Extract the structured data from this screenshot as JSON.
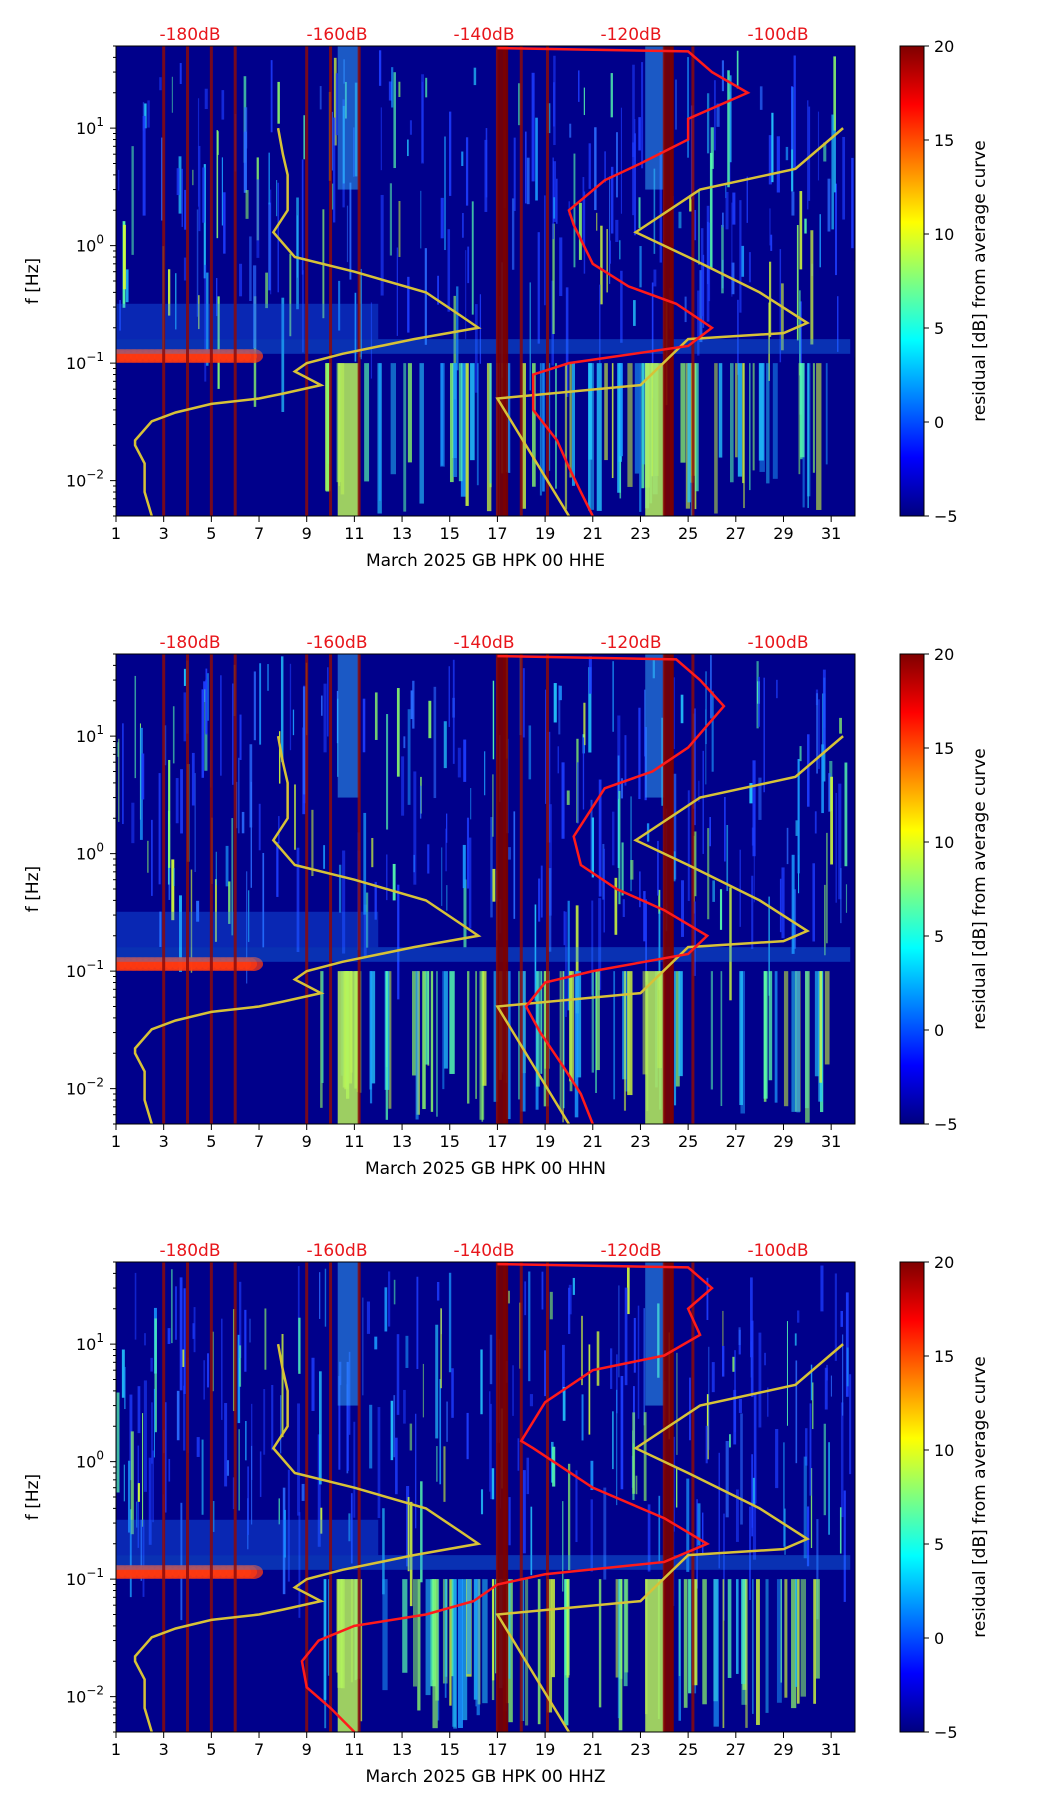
{
  "chart_data": [
    {
      "type": "heatmap",
      "title": "",
      "xlabel": "March 2025 GB HPK 00 HHE",
      "ylabel": "f [Hz]",
      "x_ticks": [
        "1",
        "3",
        "5",
        "7",
        "9",
        "11",
        "13",
        "15",
        "17",
        "19",
        "21",
        "23",
        "25",
        "27",
        "29",
        "31"
      ],
      "y_ticks": [
        {
          "exp": "-2",
          "value": 0.01
        },
        {
          "exp": "-1",
          "value": 0.1
        },
        {
          "exp": "0",
          "value": 1
        },
        {
          "exp": "1",
          "value": 10
        }
      ],
      "xlim": [
        1,
        32
      ],
      "ylim": [
        0.005,
        50
      ],
      "db_labels": [
        "-180dB",
        "-160dB",
        "-140dB",
        "-120dB",
        "-100dB"
      ],
      "db_label_color": "#e8161b",
      "colorbar": {
        "label": "residual [dB] from average curve",
        "ticks": [
          "20",
          "15",
          "10",
          "5",
          "0",
          "−5"
        ],
        "range": [
          -5,
          20
        ]
      },
      "red_gap_days": [
        3,
        4,
        5,
        6,
        9,
        10,
        11.2,
        17,
        17.3,
        18,
        19.1,
        24,
        24.3,
        25.2
      ],
      "yellow_curve": [
        [
          2.5,
          0.005
        ],
        [
          2.2,
          0.008
        ],
        [
          2.2,
          0.014
        ],
        [
          1.8,
          0.02
        ],
        [
          1.8,
          0.022
        ],
        [
          2.5,
          0.032
        ],
        [
          3.5,
          0.038
        ],
        [
          5,
          0.045
        ],
        [
          7,
          0.05
        ],
        [
          8,
          0.055
        ],
        [
          9.6,
          0.065
        ],
        [
          8.5,
          0.085
        ],
        [
          9,
          0.1
        ],
        [
          10.5,
          0.12
        ],
        [
          13.5,
          0.16
        ],
        [
          16.2,
          0.2
        ],
        [
          15.5,
          0.25
        ],
        [
          14,
          0.4
        ],
        [
          11,
          0.6
        ],
        [
          8.5,
          0.8
        ],
        [
          7.6,
          1.3
        ],
        [
          8.2,
          2
        ],
        [
          8.2,
          4
        ],
        [
          8,
          6
        ],
        [
          7.8,
          10
        ],
        [
          20,
          0.005
        ],
        [
          17,
          0.05
        ],
        [
          23,
          0.065
        ],
        [
          25,
          0.16
        ],
        [
          29,
          0.18
        ],
        [
          30,
          0.22
        ],
        [
          28,
          0.4
        ],
        [
          25,
          0.8
        ],
        [
          22.8,
          1.3
        ],
        [
          25.5,
          3
        ],
        [
          29.5,
          4.5
        ],
        [
          31.5,
          10
        ]
      ],
      "red_curve": [
        [
          21,
          0.005
        ],
        [
          20.5,
          0.008
        ],
        [
          20,
          0.013
        ],
        [
          19.5,
          0.022
        ],
        [
          18.5,
          0.04
        ],
        [
          18.5,
          0.08
        ],
        [
          20,
          0.1
        ],
        [
          25,
          0.14
        ],
        [
          26,
          0.2
        ],
        [
          24.5,
          0.32
        ],
        [
          22.5,
          0.45
        ],
        [
          21,
          0.7
        ],
        [
          20.2,
          1.5
        ],
        [
          20,
          2
        ],
        [
          21.5,
          3.6
        ],
        [
          23,
          5
        ],
        [
          25,
          8
        ],
        [
          25,
          12
        ],
        [
          27.5,
          20
        ],
        [
          26,
          30
        ],
        [
          25,
          45
        ],
        [
          17,
          48
        ]
      ]
    },
    {
      "type": "heatmap",
      "title": "",
      "xlabel": "March 2025 GB HPK 00 HHN",
      "ylabel": "f [Hz]",
      "x_ticks": [
        "1",
        "3",
        "5",
        "7",
        "9",
        "11",
        "13",
        "15",
        "17",
        "19",
        "21",
        "23",
        "25",
        "27",
        "29",
        "31"
      ],
      "y_ticks": [
        {
          "exp": "-2",
          "value": 0.01
        },
        {
          "exp": "-1",
          "value": 0.1
        },
        {
          "exp": "0",
          "value": 1
        },
        {
          "exp": "1",
          "value": 10
        }
      ],
      "xlim": [
        1,
        32
      ],
      "ylim": [
        0.005,
        50
      ],
      "db_labels": [
        "-180dB",
        "-160dB",
        "-140dB",
        "-120dB",
        "-100dB"
      ],
      "db_label_color": "#e8161b",
      "colorbar": {
        "label": "residual [dB] from average curve",
        "ticks": [
          "20",
          "15",
          "10",
          "5",
          "0",
          "−5"
        ],
        "range": [
          -5,
          20
        ]
      },
      "red_gap_days": [
        3,
        4,
        5,
        6,
        9,
        10,
        11.2,
        17,
        17.3,
        18,
        19.1,
        24,
        24.3,
        25.2
      ],
      "yellow_curve": [
        [
          2.5,
          0.005
        ],
        [
          2.2,
          0.008
        ],
        [
          2.2,
          0.014
        ],
        [
          1.8,
          0.02
        ],
        [
          1.8,
          0.022
        ],
        [
          2.5,
          0.032
        ],
        [
          3.5,
          0.038
        ],
        [
          5,
          0.045
        ],
        [
          7,
          0.05
        ],
        [
          8,
          0.055
        ],
        [
          9.6,
          0.065
        ],
        [
          8.5,
          0.085
        ],
        [
          9,
          0.1
        ],
        [
          10.5,
          0.12
        ],
        [
          13.5,
          0.16
        ],
        [
          16.2,
          0.2
        ],
        [
          15.5,
          0.25
        ],
        [
          14,
          0.4
        ],
        [
          11,
          0.6
        ],
        [
          8.5,
          0.8
        ],
        [
          7.6,
          1.3
        ],
        [
          8.2,
          2
        ],
        [
          8.2,
          4
        ],
        [
          8,
          6
        ],
        [
          7.8,
          10
        ],
        [
          20,
          0.005
        ],
        [
          17,
          0.05
        ],
        [
          23,
          0.065
        ],
        [
          25,
          0.16
        ],
        [
          29,
          0.18
        ],
        [
          30,
          0.22
        ],
        [
          28,
          0.4
        ],
        [
          25,
          0.8
        ],
        [
          22.8,
          1.3
        ],
        [
          25.5,
          3
        ],
        [
          29.5,
          4.5
        ],
        [
          31.5,
          10
        ]
      ],
      "red_curve": [
        [
          21,
          0.005
        ],
        [
          20.5,
          0.009
        ],
        [
          19.8,
          0.015
        ],
        [
          18.8,
          0.03
        ],
        [
          18.2,
          0.05
        ],
        [
          19,
          0.08
        ],
        [
          21,
          0.1
        ],
        [
          25,
          0.14
        ],
        [
          25.8,
          0.2
        ],
        [
          24,
          0.33
        ],
        [
          22,
          0.5
        ],
        [
          20.5,
          0.8
        ],
        [
          20.2,
          1.4
        ],
        [
          21.5,
          3.6
        ],
        [
          23.5,
          5
        ],
        [
          25,
          8
        ],
        [
          26.5,
          18
        ],
        [
          25.5,
          30
        ],
        [
          24.5,
          45
        ],
        [
          17,
          48
        ]
      ]
    },
    {
      "type": "heatmap",
      "title": "",
      "xlabel": "March 2025 GB HPK 00 HHZ",
      "ylabel": "f [Hz]",
      "x_ticks": [
        "1",
        "3",
        "5",
        "7",
        "9",
        "11",
        "13",
        "15",
        "17",
        "19",
        "21",
        "23",
        "25",
        "27",
        "29",
        "31"
      ],
      "y_ticks": [
        {
          "exp": "-2",
          "value": 0.01
        },
        {
          "exp": "-1",
          "value": 0.1
        },
        {
          "exp": "0",
          "value": 1
        },
        {
          "exp": "1",
          "value": 10
        }
      ],
      "xlim": [
        1,
        32
      ],
      "ylim": [
        0.005,
        50
      ],
      "db_labels": [
        "-180dB",
        "-160dB",
        "-140dB",
        "-120dB",
        "-100dB"
      ],
      "db_label_color": "#e8161b",
      "colorbar": {
        "label": "residual [dB] from average curve",
        "ticks": [
          "20",
          "15",
          "10",
          "5",
          "0",
          "−5"
        ],
        "range": [
          -5,
          20
        ]
      },
      "red_gap_days": [
        3,
        4,
        5,
        6,
        9,
        10,
        11.2,
        17,
        17.3,
        18,
        19.1,
        24,
        24.3,
        25.2
      ],
      "yellow_curve": [
        [
          2.5,
          0.005
        ],
        [
          2.2,
          0.008
        ],
        [
          2.2,
          0.014
        ],
        [
          1.8,
          0.02
        ],
        [
          1.8,
          0.022
        ],
        [
          2.5,
          0.032
        ],
        [
          3.5,
          0.038
        ],
        [
          5,
          0.045
        ],
        [
          7,
          0.05
        ],
        [
          8,
          0.055
        ],
        [
          9.6,
          0.065
        ],
        [
          8.5,
          0.085
        ],
        [
          9,
          0.1
        ],
        [
          10.5,
          0.12
        ],
        [
          13.5,
          0.16
        ],
        [
          16.2,
          0.2
        ],
        [
          15.5,
          0.25
        ],
        [
          14,
          0.4
        ],
        [
          11,
          0.6
        ],
        [
          8.5,
          0.8
        ],
        [
          7.6,
          1.3
        ],
        [
          8.2,
          2
        ],
        [
          8.2,
          4
        ],
        [
          8,
          6
        ],
        [
          7.8,
          10
        ],
        [
          20,
          0.005
        ],
        [
          17,
          0.05
        ],
        [
          23,
          0.065
        ],
        [
          25,
          0.16
        ],
        [
          29,
          0.18
        ],
        [
          30,
          0.22
        ],
        [
          28,
          0.4
        ],
        [
          25,
          0.8
        ],
        [
          22.8,
          1.3
        ],
        [
          25.5,
          3
        ],
        [
          29.5,
          4.5
        ],
        [
          31.5,
          10
        ]
      ],
      "red_curve": [
        [
          11,
          0.005
        ],
        [
          10,
          0.008
        ],
        [
          9,
          0.012
        ],
        [
          8.8,
          0.02
        ],
        [
          9.5,
          0.03
        ],
        [
          11,
          0.04
        ],
        [
          14,
          0.05
        ],
        [
          16,
          0.065
        ],
        [
          17,
          0.09
        ],
        [
          19,
          0.11
        ],
        [
          24,
          0.14
        ],
        [
          25.8,
          0.2
        ],
        [
          24,
          0.33
        ],
        [
          21,
          0.6
        ],
        [
          18.5,
          1.3
        ],
        [
          18,
          1.5
        ],
        [
          19,
          3.2
        ],
        [
          21,
          6
        ],
        [
          24,
          8
        ],
        [
          25.5,
          12
        ],
        [
          25,
          20
        ],
        [
          26,
          30
        ],
        [
          25,
          45
        ],
        [
          17,
          48
        ]
      ]
    }
  ]
}
